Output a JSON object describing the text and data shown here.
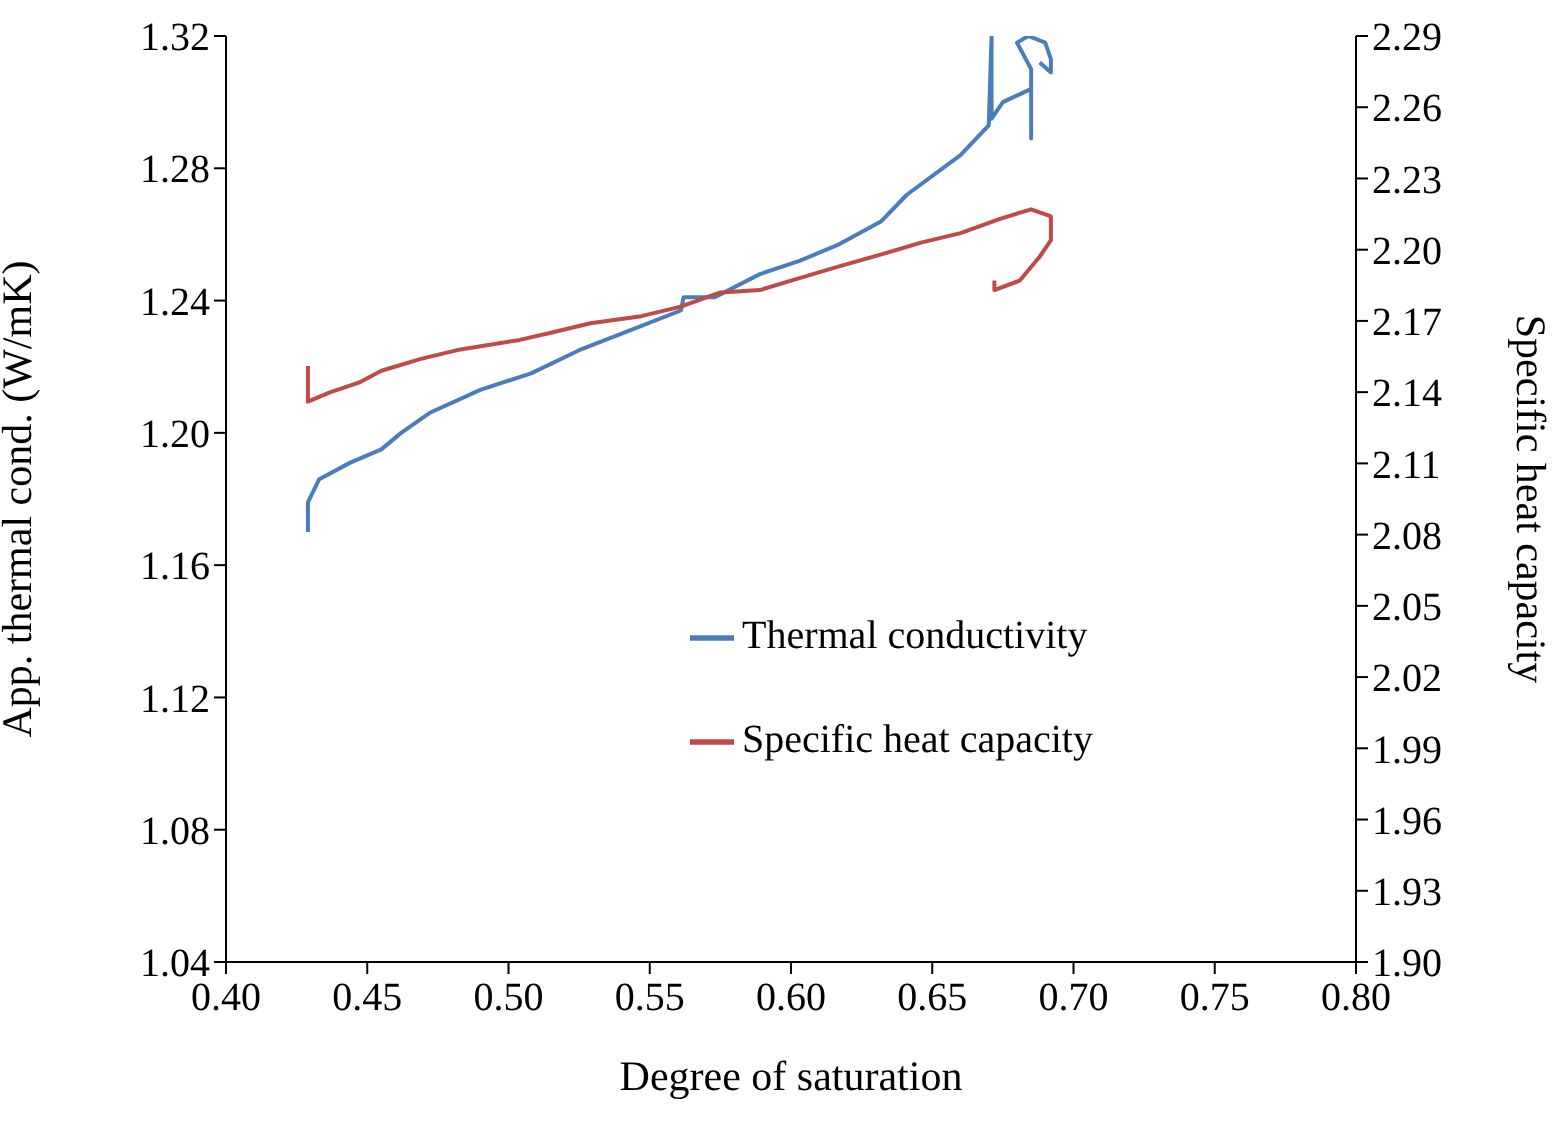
{
  "chart_data": {
    "type": "line",
    "xlabel": "Degree of saturation",
    "ylabel": "App. thermal cond. (W/mK)",
    "y2label": "Specific heat capacity",
    "xlim": [
      0.4,
      0.8
    ],
    "xticks": [
      {
        "value": 0.4,
        "label": "0.40"
      },
      0.45,
      {
        "value": 0.5,
        "label": "0.50"
      },
      0.55,
      {
        "value": 0.6,
        "label": "0.60"
      },
      0.65,
      {
        "value": 0.7,
        "label": "0.70"
      },
      0.75,
      {
        "value": 0.8,
        "label": "0.80"
      }
    ],
    "ylim": [
      1.04,
      1.32
    ],
    "yticks": [
      1.04,
      1.08,
      1.12,
      1.16,
      {
        "value": 1.2,
        "label": "1.20"
      },
      1.24,
      1.28,
      1.32
    ],
    "y2lim": [
      1.9,
      2.29
    ],
    "y2ticks": [
      {
        "value": 1.9,
        "label": "1.90"
      },
      1.93,
      1.96,
      1.99,
      2.02,
      2.05,
      2.08,
      2.11,
      2.14,
      2.17,
      {
        "value": 2.2,
        "label": "2.20"
      },
      2.23,
      2.26,
      2.29
    ],
    "grid": false,
    "legend": "bottom right",
    "marker": "none",
    "line_style": "solid",
    "series": [
      {
        "name": "Thermal conductivity",
        "color": "#4a7ebb",
        "x": [
          0.429,
          0.429,
          0.433,
          0.444,
          0.455,
          0.462,
          0.472,
          0.49,
          0.508,
          0.525,
          0.543,
          0.561,
          0.562,
          0.573,
          0.589,
          0.603,
          0.617,
          0.632,
          0.641,
          0.66,
          0.67,
          0.671,
          0.671,
          0.675,
          0.685,
          0.685,
          0.685,
          0.68,
          0.684,
          0.69,
          0.692,
          0.692,
          0.688
        ],
        "values": [
          1.17,
          1.179,
          1.186,
          1.191,
          1.195,
          1.2,
          1.206,
          1.213,
          1.218,
          1.225,
          1.231,
          1.237,
          1.241,
          1.241,
          1.248,
          1.252,
          1.257,
          1.264,
          1.272,
          1.284,
          1.293,
          1.32,
          1.295,
          1.3,
          1.304,
          1.289,
          1.31,
          1.318,
          1.32,
          1.318,
          1.313,
          1.309,
          1.312
        ]
      },
      {
        "name": "Specific heat capacity",
        "color": "#be4b48",
        "axis": "y2",
        "x": [
          0.429,
          0.429,
          0.437,
          0.447,
          0.455,
          0.469,
          0.483,
          0.504,
          0.515,
          0.529,
          0.547,
          0.561,
          0.575,
          0.589,
          0.603,
          0.617,
          0.632,
          0.646,
          0.66,
          0.674,
          0.685,
          0.692,
          0.692,
          0.688,
          0.681,
          0.672,
          0.672
        ],
        "values": [
          2.151,
          2.136,
          2.14,
          2.144,
          2.149,
          2.154,
          2.158,
          2.162,
          2.165,
          2.169,
          2.172,
          2.176,
          2.182,
          2.183,
          2.188,
          2.193,
          2.198,
          2.203,
          2.207,
          2.213,
          2.217,
          2.214,
          2.204,
          2.197,
          2.187,
          2.183,
          2.187
        ]
      }
    ]
  }
}
